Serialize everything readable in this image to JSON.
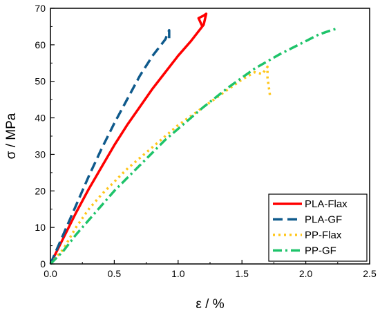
{
  "chart_data": {
    "type": "line",
    "title": "",
    "xlabel": "ε / %",
    "ylabel": "σ / MPa",
    "xlim": [
      0.0,
      2.5
    ],
    "ylim": [
      0,
      70
    ],
    "xticks": [
      "0.0",
      "0.5",
      "1.0",
      "1.5",
      "2.0",
      "2.5"
    ],
    "yticks": [
      "0",
      "10",
      "20",
      "30",
      "40",
      "50",
      "60",
      "70"
    ],
    "grid": false,
    "legend_position": "bottom-right",
    "series": [
      {
        "name": "PLA-Flax",
        "color": "#ff0000",
        "dash": "solid",
        "x": [
          0.0,
          0.1,
          0.2,
          0.3,
          0.4,
          0.5,
          0.6,
          0.7,
          0.8,
          0.9,
          1.0,
          1.1,
          1.2,
          1.22,
          1.2,
          1.16,
          1.19
        ],
        "y": [
          0,
          7,
          14,
          20.5,
          26.5,
          32.5,
          38,
          43,
          48,
          52.5,
          57,
          61,
          65.5,
          68.5,
          68,
          67.3,
          65
        ]
      },
      {
        "name": "PLA-GF",
        "color": "#0f5a8c",
        "dash": "dash",
        "x": [
          0.0,
          0.1,
          0.2,
          0.3,
          0.4,
          0.5,
          0.6,
          0.7,
          0.8,
          0.9,
          0.93,
          0.93
        ],
        "y": [
          0,
          8,
          16,
          24,
          31.5,
          38.5,
          45,
          51.5,
          57,
          61.5,
          64,
          61
        ]
      },
      {
        "name": "PP-Flax",
        "color": "#ffc61a",
        "dash": "dot",
        "x": [
          0.0,
          0.1,
          0.2,
          0.3,
          0.4,
          0.5,
          0.6,
          0.7,
          0.8,
          0.9,
          1.0,
          1.1,
          1.2,
          1.3,
          1.4,
          1.5,
          1.6,
          1.66,
          1.7,
          1.7,
          1.72
        ],
        "y": [
          0,
          4,
          10,
          15,
          19,
          22.5,
          26,
          29,
          32,
          35,
          38,
          40.5,
          43,
          45.5,
          48,
          50.5,
          52.5,
          52,
          54,
          51,
          46
        ]
      },
      {
        "name": "PP-GF",
        "color": "#1ec36a",
        "dash": "dashdot",
        "x": [
          0.0,
          0.1,
          0.2,
          0.3,
          0.4,
          0.5,
          0.6,
          0.7,
          0.8,
          0.9,
          1.0,
          1.2,
          1.4,
          1.6,
          1.8,
          2.0,
          2.1,
          2.2,
          2.25
        ],
        "y": [
          0,
          3.5,
          8,
          12,
          16,
          20,
          23.5,
          27,
          30.5,
          34,
          37,
          43,
          48.5,
          53.5,
          57.5,
          61,
          62.8,
          64,
          64.5
        ]
      }
    ]
  }
}
